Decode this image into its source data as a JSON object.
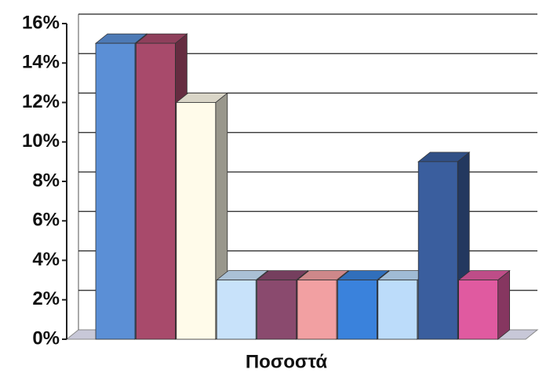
{
  "chart_data": {
    "type": "bar3d",
    "categories": [
      "Ποσοστά"
    ],
    "series": [
      {
        "color": "#5b8fd6",
        "values": [
          15
        ]
      },
      {
        "color": "#a84a6b",
        "values": [
          15
        ]
      },
      {
        "color": "#fffbea",
        "values": [
          12
        ]
      },
      {
        "color": "#c8e2fa",
        "values": [
          3
        ]
      },
      {
        "color": "#8a4a6e",
        "values": [
          3
        ]
      },
      {
        "color": "#f2a0a2",
        "values": [
          3
        ]
      },
      {
        "color": "#3a82dc",
        "values": [
          3
        ]
      },
      {
        "color": "#bcdcfa",
        "values": [
          3
        ]
      },
      {
        "color": "#3a5e9e",
        "values": [
          9
        ]
      },
      {
        "color": "#e05aa0",
        "values": [
          3
        ]
      }
    ],
    "ylim": [
      0,
      16
    ],
    "yticks": [
      {
        "value": 0,
        "label": "0%"
      },
      {
        "value": 2,
        "label": "2%"
      },
      {
        "value": 4,
        "label": "4%"
      },
      {
        "value": 6,
        "label": "6%"
      },
      {
        "value": 8,
        "label": "8%"
      },
      {
        "value": 10,
        "label": "10%"
      },
      {
        "value": 12,
        "label": "12%"
      },
      {
        "value": 14,
        "label": "14%"
      },
      {
        "value": 16,
        "label": "16%"
      }
    ],
    "grid": true
  }
}
